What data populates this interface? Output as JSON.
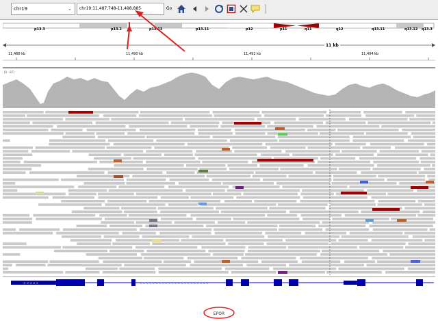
{
  "toolbar": {
    "genome": "chr19",
    "locus": "chr19:11,487,748-11,498,885",
    "go_label": "Go"
  },
  "ideogram": {
    "bands": [
      "p13.3",
      "p13.2",
      "p13.13",
      "p13.11",
      "p12",
      "p11",
      "q11",
      "q12",
      "q13.11",
      "q13.12",
      "q13.3"
    ],
    "centromere_color": "#a00000"
  },
  "ruler": {
    "span_label": "11 kb",
    "ticks": [
      "11,488 kb",
      "11,490 kb",
      "11,492 kb",
      "11,494 kb"
    ]
  },
  "coverage": {
    "range_label": "[0 - 87]"
  },
  "gene": {
    "name": "EPOR",
    "color": "#0000aa"
  },
  "colors": {
    "read": "#c8c8c8",
    "annotation": "#e02020",
    "coverage": "#b4b4b4"
  }
}
